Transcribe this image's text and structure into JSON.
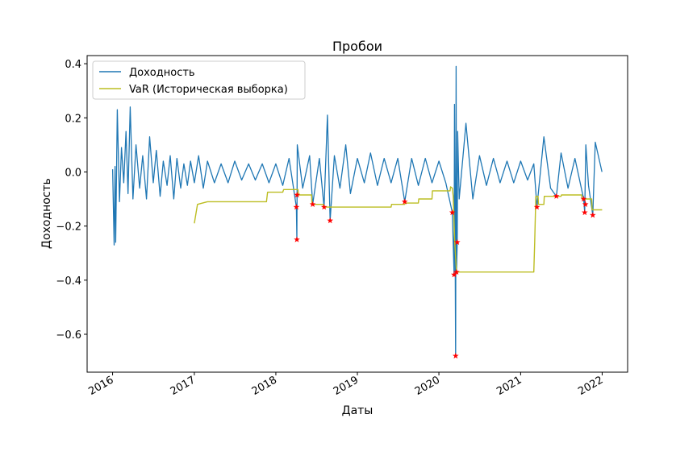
{
  "chart_data": {
    "type": "line",
    "title": "Пробои",
    "xlabel": "Даты",
    "ylabel": "Доходность",
    "x_tick_labels": [
      "2016",
      "2017",
      "2018",
      "2019",
      "2020",
      "2021",
      "2022"
    ],
    "y_ticks": [
      0.4,
      0.2,
      0.0,
      -0.2,
      -0.4,
      -0.6
    ],
    "y_tick_labels": [
      "0.4",
      "0.2",
      "0.0",
      "−0.2",
      "−0.4",
      "−0.6"
    ],
    "xlim": [
      "2015-09-09",
      "2022-04-25"
    ],
    "ylim": [
      -0.74,
      0.43
    ],
    "grid": false,
    "legend_position": "top-left",
    "colors": {
      "returns": "#1f77b4",
      "var": "#bcbd22",
      "breaches": "#ff0000"
    },
    "series": [
      {
        "name": "Доходность",
        "role": "returns",
        "points": [
          [
            "2016-01-01",
            0.01
          ],
          [
            "2016-01-08",
            -0.27
          ],
          [
            "2016-01-12",
            0.02
          ],
          [
            "2016-01-15",
            -0.26
          ],
          [
            "2016-01-22",
            0.23
          ],
          [
            "2016-02-01",
            -0.11
          ],
          [
            "2016-02-10",
            0.09
          ],
          [
            "2016-02-20",
            -0.04
          ],
          [
            "2016-03-01",
            0.15
          ],
          [
            "2016-03-10",
            -0.08
          ],
          [
            "2016-03-20",
            0.24
          ],
          [
            "2016-04-01",
            -0.1
          ],
          [
            "2016-04-15",
            0.1
          ],
          [
            "2016-05-01",
            -0.06
          ],
          [
            "2016-05-15",
            0.06
          ],
          [
            "2016-06-01",
            -0.1
          ],
          [
            "2016-06-15",
            0.13
          ],
          [
            "2016-07-01",
            -0.04
          ],
          [
            "2016-07-15",
            0.08
          ],
          [
            "2016-08-01",
            -0.09
          ],
          [
            "2016-08-15",
            0.04
          ],
          [
            "2016-09-01",
            -0.05
          ],
          [
            "2016-09-15",
            0.06
          ],
          [
            "2016-10-01",
            -0.1
          ],
          [
            "2016-10-15",
            0.05
          ],
          [
            "2016-11-01",
            -0.06
          ],
          [
            "2016-11-15",
            0.03
          ],
          [
            "2016-12-01",
            -0.05
          ],
          [
            "2016-12-15",
            0.04
          ],
          [
            "2017-01-01",
            -0.04
          ],
          [
            "2017-01-20",
            0.06
          ],
          [
            "2017-02-10",
            -0.06
          ],
          [
            "2017-03-01",
            0.04
          ],
          [
            "2017-04-01",
            -0.04
          ],
          [
            "2017-05-01",
            0.03
          ],
          [
            "2017-06-01",
            -0.04
          ],
          [
            "2017-07-01",
            0.04
          ],
          [
            "2017-08-01",
            -0.03
          ],
          [
            "2017-09-01",
            0.03
          ],
          [
            "2017-10-01",
            -0.03
          ],
          [
            "2017-11-01",
            0.03
          ],
          [
            "2017-12-01",
            -0.04
          ],
          [
            "2018-01-01",
            0.03
          ],
          [
            "2018-02-01",
            -0.05
          ],
          [
            "2018-03-01",
            0.05
          ],
          [
            "2018-04-03",
            -0.13
          ],
          [
            "2018-04-05",
            -0.25
          ],
          [
            "2018-04-07",
            0.1
          ],
          [
            "2018-05-01",
            -0.06
          ],
          [
            "2018-06-01",
            0.06
          ],
          [
            "2018-06-15",
            -0.12
          ],
          [
            "2018-07-15",
            0.05
          ],
          [
            "2018-08-05",
            -0.13
          ],
          [
            "2018-08-20",
            0.21
          ],
          [
            "2018-09-01",
            -0.18
          ],
          [
            "2018-09-20",
            0.06
          ],
          [
            "2018-10-15",
            -0.06
          ],
          [
            "2018-11-10",
            0.1
          ],
          [
            "2018-12-01",
            -0.08
          ],
          [
            "2019-01-01",
            0.05
          ],
          [
            "2019-02-01",
            -0.04
          ],
          [
            "2019-03-01",
            0.07
          ],
          [
            "2019-04-01",
            -0.05
          ],
          [
            "2019-05-01",
            0.05
          ],
          [
            "2019-06-01",
            -0.04
          ],
          [
            "2019-07-01",
            0.05
          ],
          [
            "2019-08-01",
            -0.11
          ],
          [
            "2019-09-01",
            0.05
          ],
          [
            "2019-10-01",
            -0.05
          ],
          [
            "2019-11-01",
            0.05
          ],
          [
            "2019-12-01",
            -0.04
          ],
          [
            "2020-01-01",
            0.04
          ],
          [
            "2020-02-01",
            -0.04
          ],
          [
            "2020-03-01",
            -0.15
          ],
          [
            "2020-03-09",
            -0.38
          ],
          [
            "2020-03-11",
            0.25
          ],
          [
            "2020-03-16",
            -0.68
          ],
          [
            "2020-03-18",
            0.39
          ],
          [
            "2020-03-20",
            -0.37
          ],
          [
            "2020-03-23",
            -0.26
          ],
          [
            "2020-03-25",
            0.15
          ],
          [
            "2020-04-01",
            -0.1
          ],
          [
            "2020-05-01",
            0.18
          ],
          [
            "2020-06-01",
            -0.1
          ],
          [
            "2020-07-01",
            0.06
          ],
          [
            "2020-08-01",
            -0.05
          ],
          [
            "2020-09-01",
            0.05
          ],
          [
            "2020-10-01",
            -0.04
          ],
          [
            "2020-11-01",
            0.04
          ],
          [
            "2020-12-01",
            -0.04
          ],
          [
            "2021-01-01",
            0.04
          ],
          [
            "2021-02-01",
            -0.03
          ],
          [
            "2021-03-01",
            0.03
          ],
          [
            "2021-03-15",
            -0.13
          ],
          [
            "2021-04-15",
            0.13
          ],
          [
            "2021-05-15",
            -0.06
          ],
          [
            "2021-06-10",
            -0.09
          ],
          [
            "2021-07-01",
            0.07
          ],
          [
            "2021-08-01",
            -0.06
          ],
          [
            "2021-09-01",
            0.05
          ],
          [
            "2021-10-10",
            -0.1
          ],
          [
            "2021-10-15",
            -0.15
          ],
          [
            "2021-10-20",
            0.1
          ],
          [
            "2021-11-01",
            -0.05
          ],
          [
            "2021-11-20",
            -0.16
          ],
          [
            "2021-12-01",
            0.11
          ],
          [
            "2021-12-31",
            0.0
          ]
        ]
      },
      {
        "name": "VaR (Историческая выборка)",
        "role": "var",
        "points": [
          [
            "2017-01-01",
            -0.19
          ],
          [
            "2017-01-15",
            -0.12
          ],
          [
            "2017-03-01",
            -0.11
          ],
          [
            "2017-11-20",
            -0.11
          ],
          [
            "2017-11-25",
            -0.075
          ],
          [
            "2018-02-01",
            -0.075
          ],
          [
            "2018-02-05",
            -0.065
          ],
          [
            "2018-04-10",
            -0.065
          ],
          [
            "2018-04-12",
            -0.085
          ],
          [
            "2018-06-10",
            -0.085
          ],
          [
            "2018-06-12",
            -0.12
          ],
          [
            "2018-08-01",
            -0.12
          ],
          [
            "2018-08-03",
            -0.13
          ],
          [
            "2019-06-01",
            -0.13
          ],
          [
            "2019-06-03",
            -0.12
          ],
          [
            "2019-08-01",
            -0.12
          ],
          [
            "2019-08-03",
            -0.115
          ],
          [
            "2019-10-01",
            -0.115
          ],
          [
            "2019-10-03",
            -0.1
          ],
          [
            "2019-12-01",
            -0.1
          ],
          [
            "2019-12-03",
            -0.07
          ],
          [
            "2020-02-20",
            -0.07
          ],
          [
            "2020-02-22",
            -0.055
          ],
          [
            "2020-03-01",
            -0.06
          ],
          [
            "2020-03-05",
            -0.09
          ],
          [
            "2020-03-12",
            -0.26
          ],
          [
            "2020-03-20",
            -0.37
          ],
          [
            "2021-03-01",
            -0.37
          ],
          [
            "2021-03-05",
            -0.26
          ],
          [
            "2021-03-10",
            -0.09
          ],
          [
            "2021-03-20",
            -0.09
          ],
          [
            "2021-03-22",
            -0.12
          ],
          [
            "2021-04-15",
            -0.12
          ],
          [
            "2021-04-17",
            -0.09
          ],
          [
            "2021-07-01",
            -0.09
          ],
          [
            "2021-07-03",
            -0.085
          ],
          [
            "2021-10-01",
            -0.085
          ],
          [
            "2021-10-03",
            -0.1
          ],
          [
            "2021-11-15",
            -0.1
          ],
          [
            "2021-11-17",
            -0.14
          ],
          [
            "2022-01-01",
            -0.14
          ]
        ]
      }
    ],
    "breaches": [
      [
        "2018-04-03",
        -0.13
      ],
      [
        "2018-04-05",
        -0.25
      ],
      [
        "2018-04-06",
        -0.085
      ],
      [
        "2018-06-15",
        -0.12
      ],
      [
        "2018-08-05",
        -0.13
      ],
      [
        "2018-09-01",
        -0.18
      ],
      [
        "2019-08-01",
        -0.11
      ],
      [
        "2020-03-01",
        -0.15
      ],
      [
        "2020-03-09",
        -0.38
      ],
      [
        "2020-03-16",
        -0.68
      ],
      [
        "2020-03-20",
        -0.37
      ],
      [
        "2020-03-23",
        -0.26
      ],
      [
        "2021-03-15",
        -0.13
      ],
      [
        "2021-06-10",
        -0.09
      ],
      [
        "2021-10-10",
        -0.1
      ],
      [
        "2021-10-15",
        -0.15
      ],
      [
        "2021-10-18",
        -0.12
      ],
      [
        "2021-11-20",
        -0.16
      ]
    ]
  }
}
